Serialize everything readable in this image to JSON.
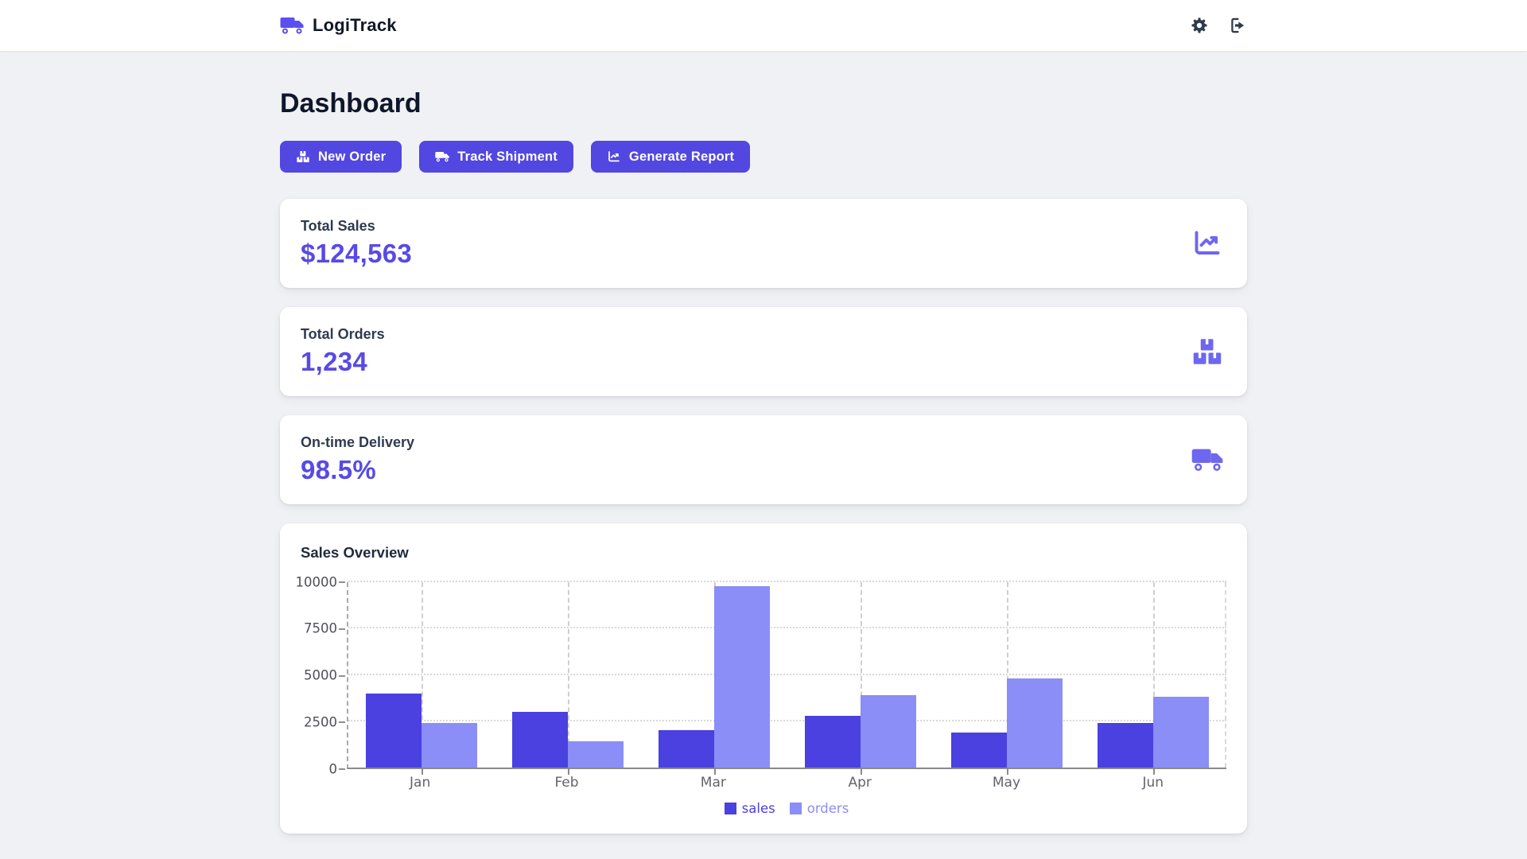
{
  "header": {
    "brand": "LogiTrack"
  },
  "page": {
    "title": "Dashboard"
  },
  "actions": {
    "new_order": {
      "label": "New Order",
      "icon": "boxes-stacked-icon"
    },
    "track_shipment": {
      "label": "Track Shipment",
      "icon": "truck-icon"
    },
    "generate_report": {
      "label": "Generate Report",
      "icon": "chart-line-icon"
    }
  },
  "stats": {
    "total_sales": {
      "label": "Total Sales",
      "value": "$124,563",
      "icon": "chart-line-icon"
    },
    "total_orders": {
      "label": "Total Orders",
      "value": "1,234",
      "icon": "boxes-stacked-icon"
    },
    "on_time_delivery": {
      "label": "On-time Delivery",
      "value": "98.5%",
      "icon": "truck-icon"
    }
  },
  "chart_card": {
    "title": "Sales Overview"
  },
  "chart_data": {
    "type": "bar",
    "title": "Sales Overview",
    "categories": [
      "Jan",
      "Feb",
      "Mar",
      "Apr",
      "May",
      "Jun"
    ],
    "series": [
      {
        "name": "sales",
        "color": "#4a41e0",
        "values": [
          4000,
          3000,
          2000,
          2780,
          1890,
          2390
        ]
      },
      {
        "name": "orders",
        "color": "#8a8ef6",
        "values": [
          2400,
          1398,
          9800,
          3908,
          4800,
          3800
        ]
      }
    ],
    "ylim": [
      0,
      10000
    ],
    "yticks": [
      0,
      2500,
      5000,
      7500,
      10000
    ],
    "xlabel": "",
    "ylabel": "",
    "grid": true,
    "legend_position": "bottom"
  },
  "colors": {
    "brand": "#5247e0",
    "value_text": "#574ae6",
    "card_icon": "#6d67f0",
    "sales_bar": "#4a41e0",
    "orders_bar": "#8a8ef6",
    "page_bg": "#f0f1f4"
  }
}
